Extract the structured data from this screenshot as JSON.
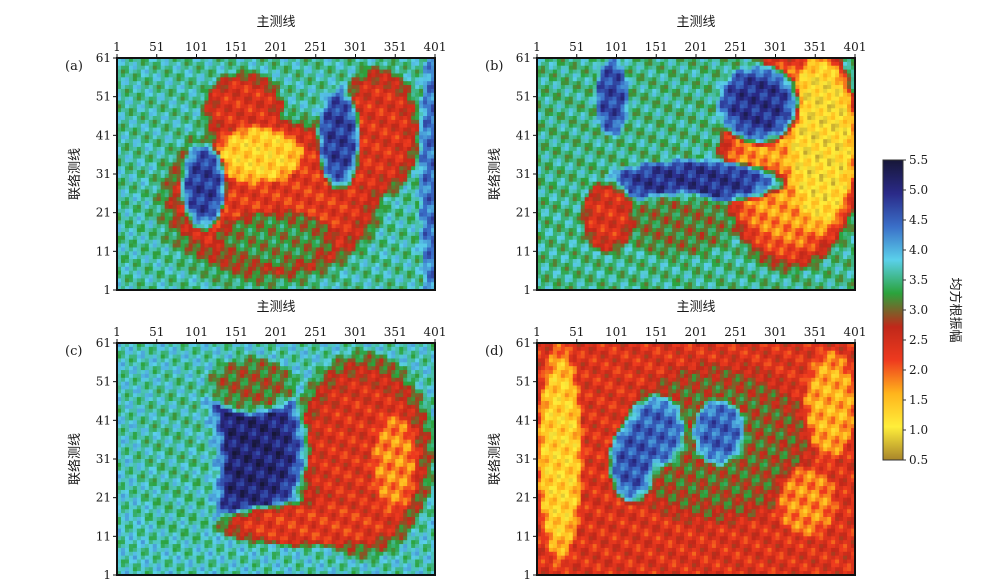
{
  "chart_data": {
    "type": "heatmap",
    "x_axis": {
      "label": "主测线",
      "range": [
        1,
        401
      ],
      "ticks": [
        "1",
        "51",
        "101",
        "151",
        "201",
        "251",
        "301",
        "351",
        "401"
      ]
    },
    "y_axis": {
      "label": "联络测线",
      "range": [
        1,
        61
      ],
      "ticks": [
        "1",
        "11",
        "21",
        "31",
        "41",
        "51",
        "61"
      ]
    },
    "colorbar": {
      "label": "均方根振幅",
      "range": [
        0.5,
        5.5
      ],
      "ticks": [
        "0.5",
        "1.0",
        "1.5",
        "2.0",
        "2.5",
        "3.0",
        "3.5",
        "4.0",
        "4.5",
        "5.0",
        "5.5"
      ],
      "colors": [
        "#a8852a",
        "#ffee3a",
        "#ffb41c",
        "#ee3a1e",
        "#c0281a",
        "#2ba33c",
        "#5ad0ea",
        "#3a6fc8",
        "#2a2a88",
        "#171738"
      ]
    },
    "panels": [
      {
        "label": "(a)",
        "background_value": 3.6,
        "regions": [
          {
            "x": 190,
            "y": 24,
            "rx": 150,
            "ry": 24,
            "value": 3.0
          },
          {
            "x": 200,
            "y": 25,
            "rx": 140,
            "ry": 21,
            "value": 2.3
          },
          {
            "x": 160,
            "y": 48,
            "rx": 55,
            "ry": 10,
            "value": 2.4
          },
          {
            "x": 330,
            "y": 42,
            "rx": 55,
            "ry": 18,
            "value": 2.4
          },
          {
            "x": 180,
            "y": 36,
            "rx": 60,
            "ry": 8,
            "value": 1.3
          },
          {
            "x": 110,
            "y": 28,
            "rx": 30,
            "ry": 12,
            "value": 4.8
          },
          {
            "x": 280,
            "y": 40,
            "rx": 28,
            "ry": 14,
            "value": 4.8
          },
          {
            "x": 200,
            "y": 14,
            "rx": 80,
            "ry": 8,
            "value": 3.2
          },
          {
            "x": 400,
            "y": 30,
            "rx": 20,
            "ry": 40,
            "value": 4.4
          }
        ]
      },
      {
        "label": "(b)",
        "background_value": 3.5,
        "regions": [
          {
            "x": 320,
            "y": 35,
            "rx": 95,
            "ry": 30,
            "value": 1.7
          },
          {
            "x": 360,
            "y": 40,
            "rx": 45,
            "ry": 25,
            "value": 1.1
          },
          {
            "x": 280,
            "y": 49,
            "rx": 55,
            "ry": 11,
            "value": 4.9
          },
          {
            "x": 95,
            "y": 51,
            "rx": 22,
            "ry": 11,
            "value": 4.7
          },
          {
            "x": 200,
            "y": 29,
            "rx": 120,
            "ry": 6,
            "value": 4.9
          },
          {
            "x": 180,
            "y": 18,
            "rx": 75,
            "ry": 9,
            "value": 3.1
          },
          {
            "x": 90,
            "y": 20,
            "rx": 35,
            "ry": 10,
            "value": 2.4
          }
        ]
      },
      {
        "label": "(c)",
        "background_value": 3.7,
        "regions": [
          {
            "x": 310,
            "y": 32,
            "rx": 95,
            "ry": 28,
            "value": 2.4
          },
          {
            "x": 165,
            "y": 33,
            "rx": 80,
            "ry": 20,
            "value": 5.1
          },
          {
            "x": 170,
            "y": 50,
            "rx": 60,
            "ry": 8,
            "value": 3.0
          },
          {
            "x": 80,
            "y": 30,
            "rx": 60,
            "ry": 25,
            "value": 3.6
          },
          {
            "x": 240,
            "y": 14,
            "rx": 120,
            "ry": 6,
            "value": 2.3
          },
          {
            "x": 350,
            "y": 30,
            "rx": 30,
            "ry": 14,
            "value": 1.8
          }
        ]
      },
      {
        "label": "(d)",
        "background_value": 2.4,
        "regions": [
          {
            "x": 225,
            "y": 35,
            "rx": 130,
            "ry": 22,
            "value": 3.0
          },
          {
            "x": 150,
            "y": 38,
            "rx": 40,
            "ry": 10,
            "value": 4.5
          },
          {
            "x": 120,
            "y": 30,
            "rx": 30,
            "ry": 11,
            "value": 4.6
          },
          {
            "x": 230,
            "y": 38,
            "rx": 35,
            "ry": 9,
            "value": 4.5
          },
          {
            "x": 30,
            "y": 32,
            "rx": 30,
            "ry": 30,
            "value": 1.3
          },
          {
            "x": 370,
            "y": 45,
            "rx": 35,
            "ry": 15,
            "value": 1.6
          },
          {
            "x": 340,
            "y": 20,
            "rx": 40,
            "ry": 10,
            "value": 1.8
          }
        ]
      }
    ]
  }
}
